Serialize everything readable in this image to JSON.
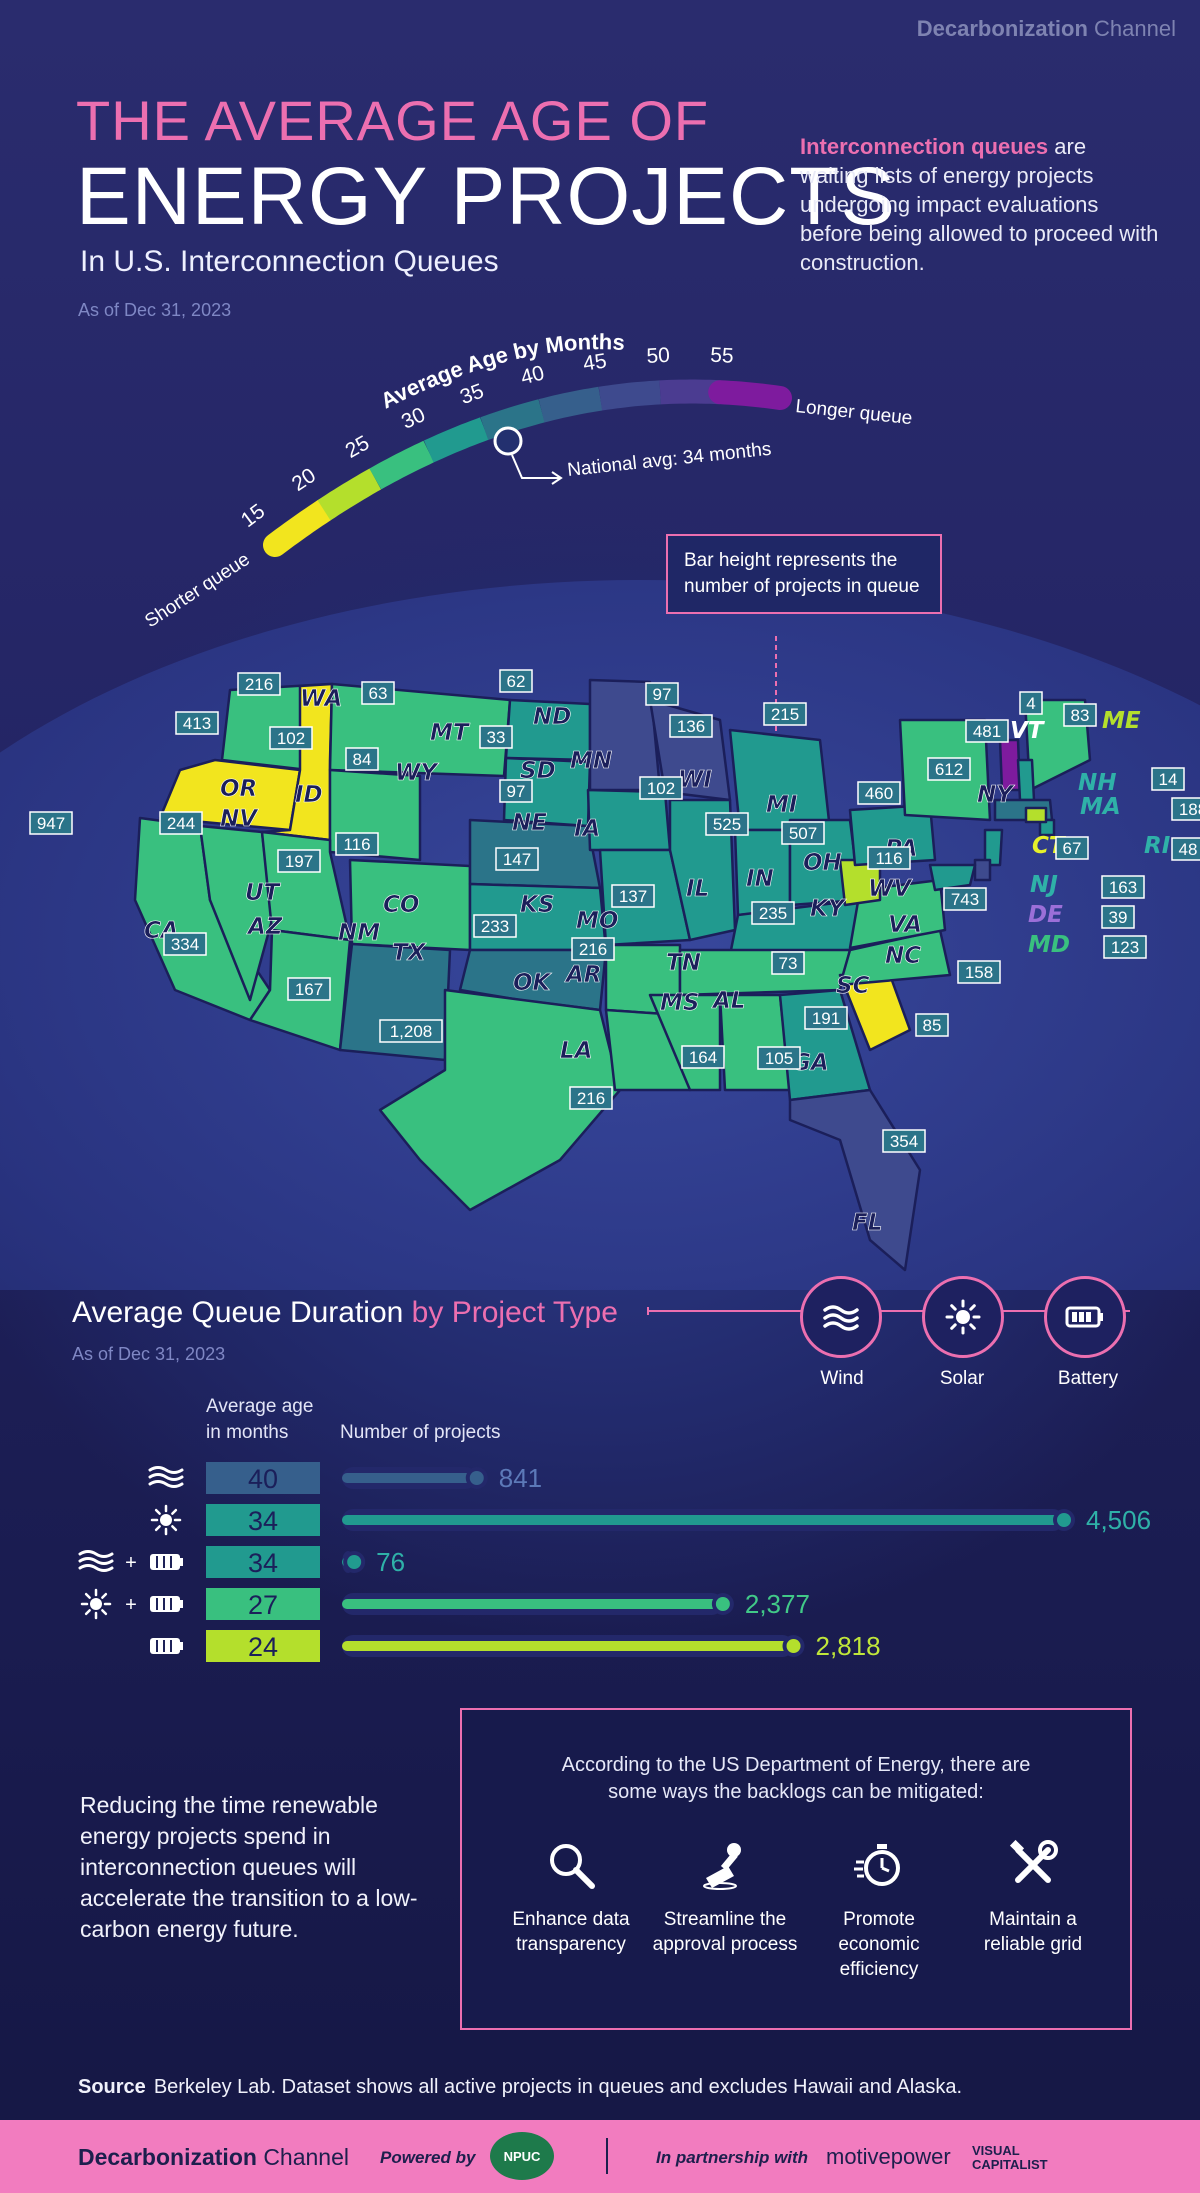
{
  "brand": {
    "name_bold": "Decarbonization",
    "name_light": "Channel"
  },
  "title": {
    "line1": "THE AVERAGE AGE OF",
    "line2": "ENERGY PROJECTS",
    "line3": "In U.S. Interconnection Queues",
    "as_of": "As of Dec 31, 2023"
  },
  "intro": {
    "highlight": "Interconnection queues",
    "rest": " are waiting lists of energy projects undergoing impact evaluations before being allowed to proceed with construction."
  },
  "scale": {
    "title": "Average Age by Months",
    "ticks": [
      "15",
      "20",
      "25",
      "30",
      "35",
      "40",
      "45",
      "50",
      "55"
    ],
    "shorter_label": "Shorter queue",
    "longer_label": "Longer queue",
    "national_avg_label": "National avg: 34 months",
    "national_avg_months": 34,
    "colors": [
      "#f2e51e",
      "#b4df2c",
      "#39c07f",
      "#219a8f",
      "#2b7489",
      "#365f8c",
      "#3e4a8e",
      "#4b3c91",
      "#7e1b9e"
    ]
  },
  "callout": {
    "text": "Bar height represents the number of projects in queue"
  },
  "map": {
    "states": [
      {
        "abbr": "WA"
      },
      {
        "abbr": "OR"
      },
      {
        "abbr": "CA"
      },
      {
        "abbr": "NV"
      },
      {
        "abbr": "ID"
      },
      {
        "abbr": "MT"
      },
      {
        "abbr": "WY"
      },
      {
        "abbr": "UT"
      },
      {
        "abbr": "AZ"
      },
      {
        "abbr": "CO"
      },
      {
        "abbr": "NM"
      },
      {
        "abbr": "ND"
      },
      {
        "abbr": "SD"
      },
      {
        "abbr": "NE"
      },
      {
        "abbr": "KS"
      },
      {
        "abbr": "OK"
      },
      {
        "abbr": "TX"
      },
      {
        "abbr": "MN"
      },
      {
        "abbr": "IA"
      },
      {
        "abbr": "MO"
      },
      {
        "abbr": "AR"
      },
      {
        "abbr": "LA"
      },
      {
        "abbr": "WI"
      },
      {
        "abbr": "IL"
      },
      {
        "abbr": "MI"
      },
      {
        "abbr": "IN"
      },
      {
        "abbr": "OH"
      },
      {
        "abbr": "KY"
      },
      {
        "abbr": "TN"
      },
      {
        "abbr": "MS"
      },
      {
        "abbr": "AL"
      },
      {
        "abbr": "GA"
      },
      {
        "abbr": "FL"
      },
      {
        "abbr": "SC"
      },
      {
        "abbr": "NC"
      },
      {
        "abbr": "VA"
      },
      {
        "abbr": "WV"
      },
      {
        "abbr": "PA"
      },
      {
        "abbr": "NY"
      },
      {
        "abbr": "VT"
      },
      {
        "abbr": "ME"
      },
      {
        "abbr": "NH"
      },
      {
        "abbr": "MA"
      },
      {
        "abbr": "RI"
      },
      {
        "abbr": "CT"
      },
      {
        "abbr": "NJ"
      },
      {
        "abbr": "DE"
      },
      {
        "abbr": "MD"
      }
    ],
    "project_counts": [
      "216",
      "413",
      "102",
      "63",
      "62",
      "97",
      "136",
      "215",
      "4",
      "83",
      "481",
      "14",
      "188",
      "947",
      "244",
      "84",
      "33",
      "97",
      "102",
      "460",
      "612",
      "48",
      "67",
      "197",
      "116",
      "147",
      "525",
      "507",
      "116",
      "163",
      "39",
      "123",
      "743",
      "137",
      "235",
      "233",
      "334",
      "216",
      "73",
      "158",
      "167",
      "191",
      "85",
      "1,208",
      "164",
      "105",
      "216",
      "354"
    ]
  },
  "chart_data": {
    "type": "bar",
    "title": "Average Queue Duration by Project Type",
    "subtitle": "As of Dec 31, 2023",
    "column_labels": {
      "age": "Average age in months",
      "count": "Number of projects"
    },
    "project_types": [
      {
        "label": "Wind",
        "icon": "wind-icon"
      },
      {
        "label": "Solar",
        "icon": "sun-icon"
      },
      {
        "label": "Battery",
        "icon": "battery-icon"
      }
    ],
    "categories": [
      "Wind",
      "Solar",
      "Wind + Battery",
      "Solar + Battery",
      "Battery"
    ],
    "series": [
      {
        "name": "Average age in months",
        "values": [
          40,
          34,
          34,
          27,
          24
        ]
      },
      {
        "name": "Number of projects",
        "values": [
          841,
          4506,
          76,
          2377,
          2818
        ]
      }
    ],
    "count_labels": [
      "841",
      "4,506",
      "76",
      "2,377",
      "2,818"
    ],
    "age_colors": [
      "#365f8c",
      "#219a8f",
      "#219a8f",
      "#39c07f",
      "#b4df2c"
    ],
    "count_text_colors": [
      "#5c79b8",
      "#2fb1a8",
      "#2fb1a8",
      "#41c988",
      "#c0e63a"
    ],
    "xlim": [
      0,
      4506
    ]
  },
  "doe": {
    "intro": "According to the US Department of Energy, there are some ways the backlogs can be mitigated:",
    "items": [
      {
        "label": "Enhance data transparency",
        "icon": "magnifier-icon"
      },
      {
        "label": "Streamline the approval process",
        "icon": "stamp-icon"
      },
      {
        "label": "Promote economic efficiency",
        "icon": "stopwatch-icon"
      },
      {
        "label": "Maintain a reliable grid",
        "icon": "tools-icon"
      }
    ]
  },
  "closing": "Reducing the time renewable energy projects spend in interconnection queues will accelerate the transition to a low-carbon energy future.",
  "source": {
    "label": "Source",
    "text": "Berkeley Lab. Dataset shows all active projects in queues and excludes Hawaii and Alaska."
  },
  "footer": {
    "powered_by": "Powered by",
    "npuc": "NPUC",
    "partnership": "In partnership with",
    "motivepower": "motivepower",
    "vc": "VISUAL CAPITALIST"
  }
}
